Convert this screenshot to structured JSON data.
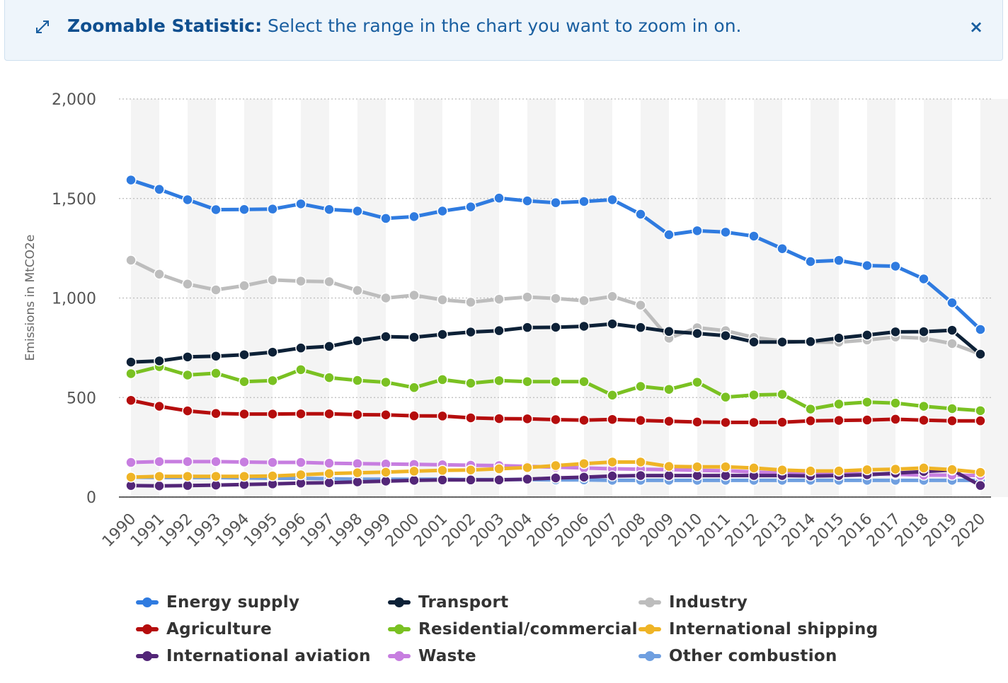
{
  "banner": {
    "title": "Zoomable Statistic:",
    "text": " Select the range in the chart you want to zoom in on.",
    "close_label": "×"
  },
  "chart_data": {
    "type": "line",
    "title": "",
    "xlabel": "",
    "ylabel": "Emissions in MtCO2e",
    "ylim": [
      0,
      2000
    ],
    "yticks": [
      0,
      500,
      1000,
      1500,
      2000
    ],
    "ytick_labels": [
      "0",
      "500",
      "1,000",
      "1,500",
      "2,000"
    ],
    "grid": "horizontal-dotted",
    "legend_position": "bottom",
    "categories": [
      "1990",
      "1991",
      "1992",
      "1993",
      "1994",
      "1995",
      "1996",
      "1997",
      "1998",
      "1999",
      "2000",
      "2001",
      "2002",
      "2003",
      "2004",
      "2005",
      "2006",
      "2007",
      "2008",
      "2009",
      "2010",
      "2011",
      "2012",
      "2013",
      "2014",
      "2015",
      "2016",
      "2017",
      "2018",
      "2019",
      "2020"
    ],
    "series": [
      {
        "name": "Energy supply",
        "color": "#2f7be0",
        "values": [
          1593,
          1546,
          1494,
          1444,
          1445,
          1447,
          1473,
          1445,
          1437,
          1400,
          1409,
          1437,
          1458,
          1502,
          1488,
          1479,
          1485,
          1494,
          1421,
          1318,
          1338,
          1331,
          1311,
          1248,
          1183,
          1189,
          1163,
          1160,
          1096,
          976,
          842
        ]
      },
      {
        "name": "Transport",
        "color": "#0d2137",
        "values": [
          678,
          684,
          704,
          708,
          715,
          728,
          749,
          757,
          785,
          806,
          803,
          817,
          829,
          836,
          852,
          853,
          858,
          870,
          852,
          832,
          822,
          811,
          779,
          779,
          781,
          799,
          814,
          830,
          831,
          838,
          718
        ]
      },
      {
        "name": "Industry",
        "color": "#bdbdbd",
        "values": [
          1190,
          1120,
          1070,
          1041,
          1062,
          1091,
          1085,
          1082,
          1038,
          1000,
          1014,
          991,
          979,
          994,
          1005,
          998,
          987,
          1008,
          964,
          798,
          851,
          836,
          802,
          784,
          779,
          778,
          789,
          804,
          798,
          771,
          718
        ]
      },
      {
        "name": "Agriculture",
        "color": "#b50d0d",
        "values": [
          486,
          456,
          433,
          420,
          417,
          417,
          418,
          418,
          414,
          413,
          408,
          407,
          398,
          394,
          393,
          389,
          386,
          390,
          385,
          381,
          377,
          375,
          375,
          376,
          383,
          385,
          387,
          391,
          386,
          383,
          383
        ]
      },
      {
        "name": "Residential/commercial",
        "color": "#7ac122",
        "values": [
          620,
          655,
          613,
          622,
          580,
          585,
          640,
          600,
          586,
          577,
          550,
          590,
          572,
          585,
          580,
          580,
          580,
          512,
          556,
          541,
          577,
          502,
          513,
          516,
          442,
          467,
          477,
          472,
          456,
          444,
          434
        ]
      },
      {
        "name": "International shipping",
        "color": "#efb426",
        "values": [
          100,
          104,
          104,
          104,
          104,
          106,
          112,
          118,
          122,
          125,
          130,
          134,
          136,
          142,
          148,
          158,
          168,
          176,
          176,
          154,
          152,
          152,
          146,
          136,
          131,
          131,
          137,
          140,
          146,
          138,
          124
        ]
      },
      {
        "name": "International aviation",
        "color": "#532678",
        "values": [
          58,
          56,
          58,
          60,
          63,
          66,
          70,
          72,
          76,
          80,
          84,
          86,
          86,
          86,
          90,
          96,
          100,
          106,
          108,
          108,
          108,
          108,
          108,
          108,
          106,
          108,
          112,
          120,
          128,
          136,
          58
        ]
      },
      {
        "name": "Waste",
        "color": "#c77ee0",
        "values": [
          174,
          178,
          178,
          178,
          176,
          174,
          174,
          170,
          168,
          166,
          164,
          162,
          160,
          158,
          154,
          150,
          146,
          142,
          140,
          138,
          134,
          132,
          126,
          120,
          118,
          118,
          116,
          114,
          110,
          110,
          108
        ]
      },
      {
        "name": "Other combustion",
        "color": "#6f9fe0",
        "values": [
          100,
          98,
          98,
          98,
          96,
          94,
          94,
          92,
          90,
          90,
          90,
          90,
          88,
          88,
          88,
          86,
          86,
          84,
          84,
          84,
          84,
          84,
          84,
          84,
          84,
          84,
          84,
          84,
          84,
          84,
          84
        ]
      }
    ]
  }
}
